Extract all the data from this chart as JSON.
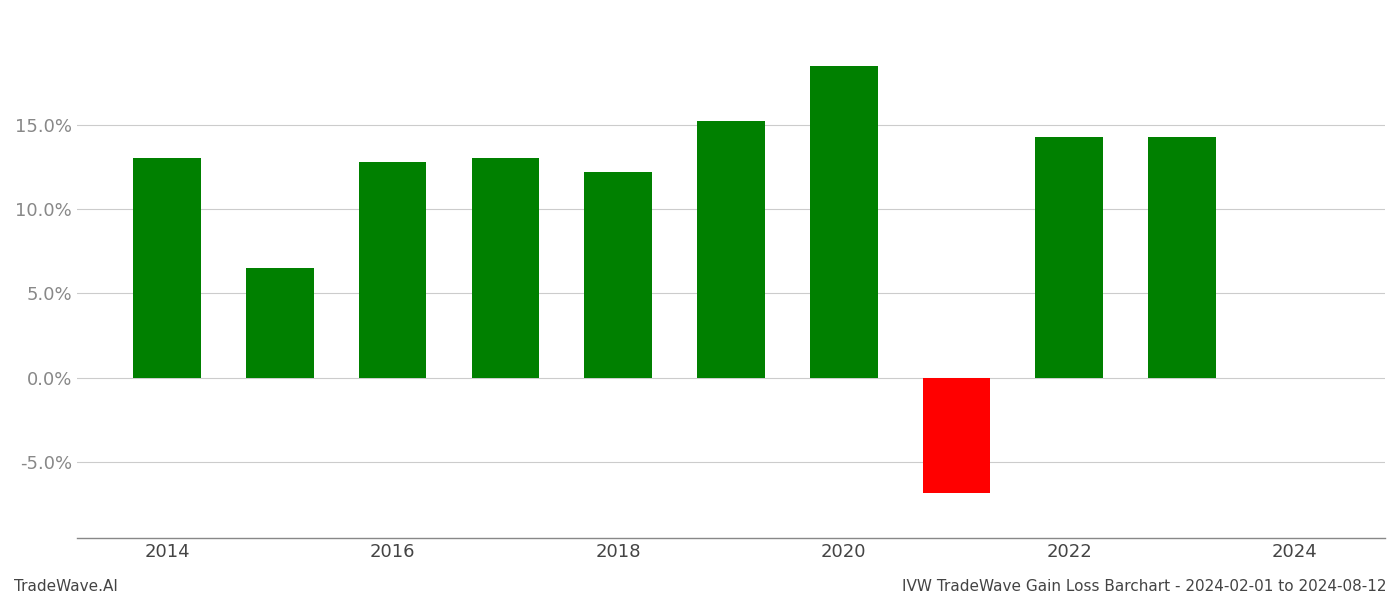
{
  "years": [
    2014,
    2015,
    2016,
    2017,
    2018,
    2019,
    2020,
    2021,
    2022,
    2023
  ],
  "bar_values": [
    0.13,
    0.065,
    0.128,
    0.13,
    0.122,
    0.152,
    0.185,
    -0.068,
    0.143,
    0.143
  ],
  "colors_positive": "#008000",
  "colors_negative": "#ff0000",
  "background_color": "#ffffff",
  "grid_color": "#cccccc",
  "footer_left": "TradeWave.AI",
  "footer_right": "IVW TradeWave Gain Loss Barchart - 2024-02-01 to 2024-08-12",
  "yticks": [
    -0.05,
    0.0,
    0.05,
    0.1,
    0.15
  ],
  "ylim": [
    -0.095,
    0.215
  ],
  "xlim": [
    2013.2,
    2024.8
  ],
  "xticks": [
    2014,
    2016,
    2018,
    2020,
    2022,
    2024
  ],
  "bar_width": 0.6
}
